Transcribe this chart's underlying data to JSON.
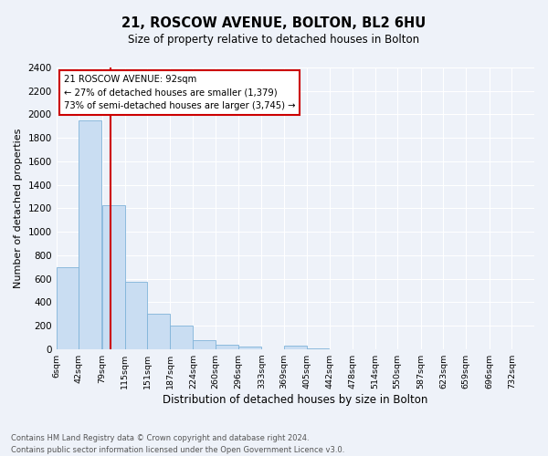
{
  "title": "21, ROSCOW AVENUE, BOLTON, BL2 6HU",
  "subtitle": "Size of property relative to detached houses in Bolton",
  "xlabel": "Distribution of detached houses by size in Bolton",
  "ylabel": "Number of detached properties",
  "bin_labels": [
    "6sqm",
    "42sqm",
    "79sqm",
    "115sqm",
    "151sqm",
    "187sqm",
    "224sqm",
    "260sqm",
    "296sqm",
    "333sqm",
    "369sqm",
    "405sqm",
    "442sqm",
    "478sqm",
    "514sqm",
    "550sqm",
    "587sqm",
    "623sqm",
    "659sqm",
    "696sqm",
    "732sqm"
  ],
  "bin_edges": [
    6,
    42,
    79,
    115,
    151,
    187,
    224,
    260,
    296,
    333,
    369,
    405,
    442,
    478,
    514,
    550,
    587,
    623,
    659,
    696,
    732
  ],
  "bar_heights": [
    700,
    1950,
    1230,
    575,
    305,
    200,
    80,
    40,
    25,
    0,
    30,
    10,
    0,
    0,
    0,
    0,
    0,
    0,
    0,
    0
  ],
  "bar_color": "#c9ddf2",
  "bar_edgecolor": "#7fb3d9",
  "vline_x": 92,
  "vline_color": "#cc0000",
  "annotation_title": "21 ROSCOW AVENUE: 92sqm",
  "annotation_line1": "← 27% of detached houses are smaller (1,379)",
  "annotation_line2": "73% of semi-detached houses are larger (3,745) →",
  "annotation_box_facecolor": "#ffffff",
  "annotation_box_edgecolor": "#cc0000",
  "ylim": [
    0,
    2400
  ],
  "yticks": [
    0,
    200,
    400,
    600,
    800,
    1000,
    1200,
    1400,
    1600,
    1800,
    2000,
    2200,
    2400
  ],
  "footer1": "Contains HM Land Registry data © Crown copyright and database right 2024.",
  "footer2": "Contains public sector information licensed under the Open Government Licence v3.0.",
  "bg_color": "#eef2f9",
  "plot_bg_color": "#eef2f9",
  "grid_color": "#ffffff"
}
